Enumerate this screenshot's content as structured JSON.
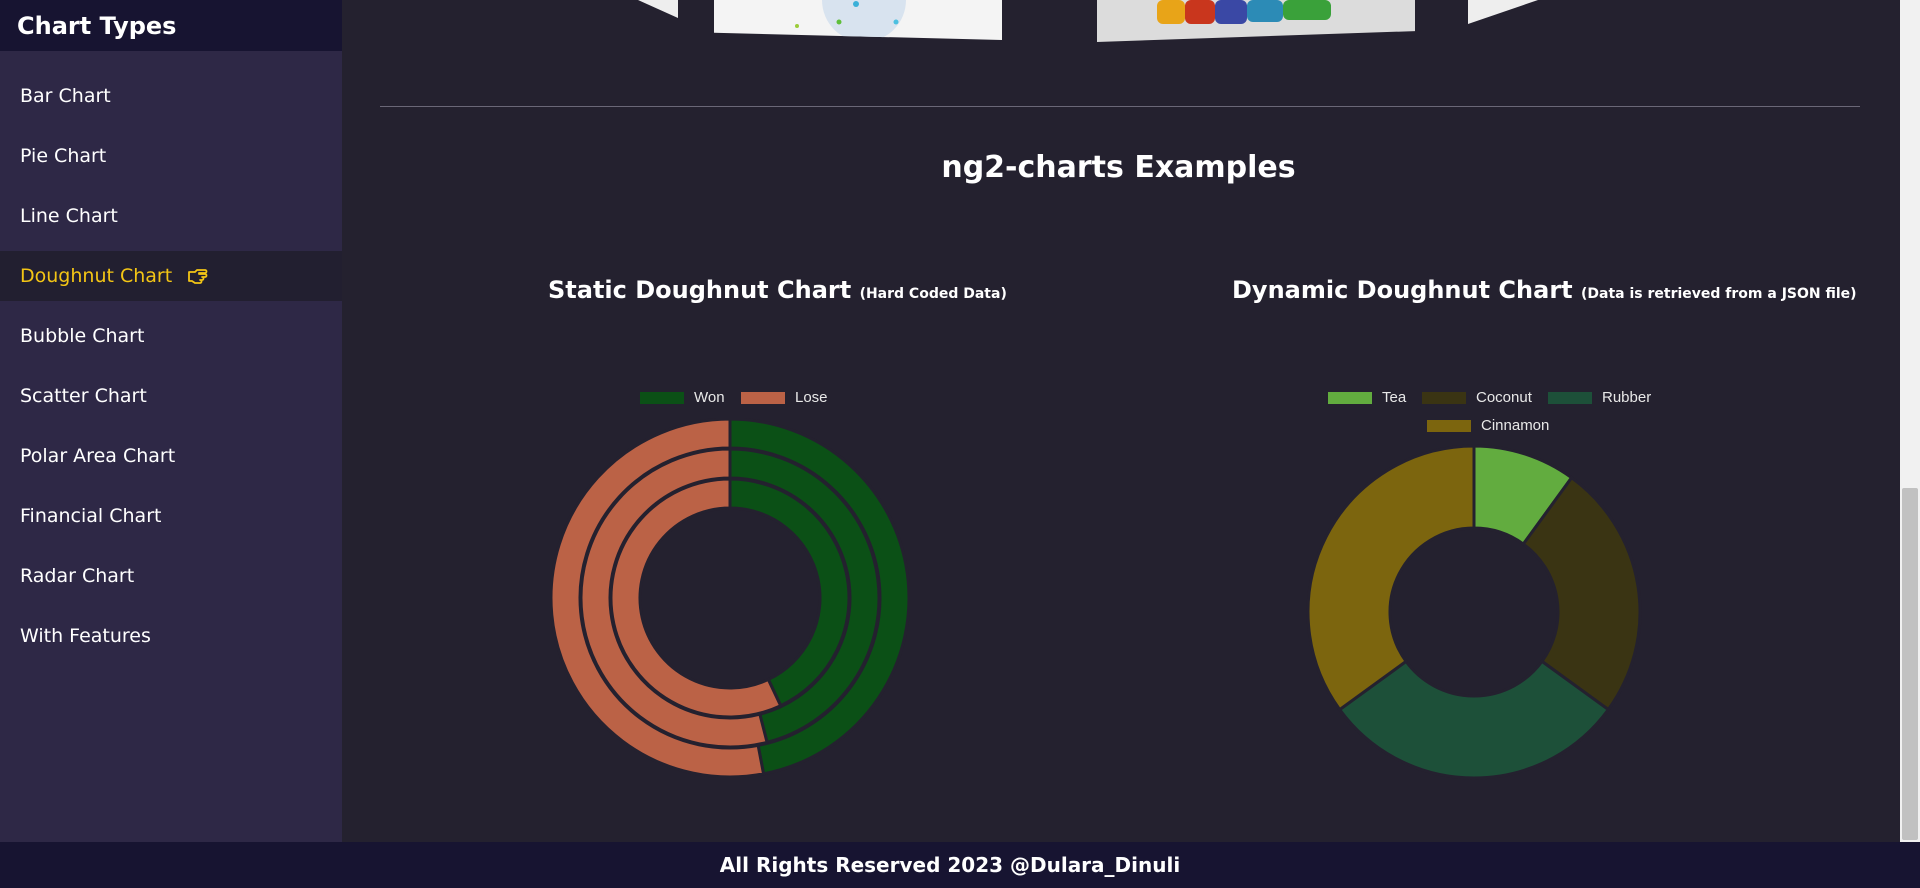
{
  "sidebar": {
    "title": "Chart Types",
    "items": [
      {
        "label": "Bar Chart"
      },
      {
        "label": "Pie Chart"
      },
      {
        "label": "Line Chart"
      },
      {
        "label": "Doughnut Chart",
        "active": true,
        "icon": "pointing-hand-icon"
      },
      {
        "label": "Bubble Chart"
      },
      {
        "label": "Scatter Chart"
      },
      {
        "label": "Polar Area Chart"
      },
      {
        "label": "Financial Chart"
      },
      {
        "label": "Radar Chart"
      },
      {
        "label": "With Features"
      }
    ]
  },
  "main": {
    "page_title": "ng2-charts Examples",
    "static_chart": {
      "title": "Static Doughnut Chart",
      "subtitle": "(Hard Coded Data)"
    },
    "dynamic_chart": {
      "title": "Dynamic Doughnut Chart",
      "subtitle": "(Data is retrieved from a JSON file)"
    }
  },
  "footer": {
    "text": "All Rights Reserved 2023 @Dulara_Dinuli"
  },
  "colors": {
    "accent": "#f3c515",
    "sidebar_bg": "#2e2846",
    "header_bg": "#171431",
    "page_bg": "#24212f"
  },
  "chart_data": [
    {
      "type": "doughnut",
      "legend": [
        "Won",
        "Lose"
      ],
      "colors": [
        "#0b5016",
        "#bb6246"
      ],
      "rings": [
        {
          "values": [
            47,
            53
          ]
        },
        {
          "values": [
            46,
            54
          ]
        },
        {
          "values": [
            43,
            57
          ]
        }
      ],
      "legend_position": "top"
    },
    {
      "type": "doughnut",
      "categories": [
        "Tea",
        "Coconut",
        "Rubber",
        "Cinnamon"
      ],
      "values": [
        10,
        25,
        30,
        35
      ],
      "colors": [
        "#62ac3f",
        "#3a3413",
        "#1d5039",
        "#7c650e"
      ],
      "legend_position": "top"
    }
  ]
}
